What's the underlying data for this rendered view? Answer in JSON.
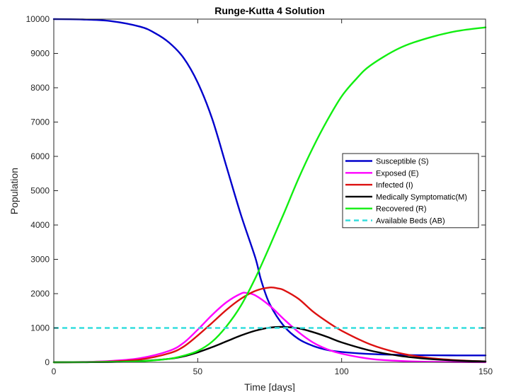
{
  "chart_data": {
    "type": "line",
    "title": "Runge-Kutta 4 Solution",
    "xlabel": "Time [days]",
    "ylabel": "Population",
    "xlim": [
      0,
      150
    ],
    "ylim": [
      0,
      10000
    ],
    "xticks": [
      0,
      50,
      100,
      150
    ],
    "yticks": [
      0,
      1000,
      2000,
      3000,
      4000,
      5000,
      6000,
      7000,
      8000,
      9000,
      10000
    ],
    "grid": false,
    "legend_position": "right-middle",
    "series": [
      {
        "name": "Susceptible (S)",
        "color": "#0000cc",
        "style": "solid",
        "x": [
          0,
          10,
          20,
          30,
          35,
          40,
          45,
          50,
          55,
          60,
          65,
          70,
          72,
          75,
          80,
          85,
          90,
          95,
          100,
          110,
          120,
          130,
          140,
          150
        ],
        "y": [
          10000,
          9990,
          9940,
          9780,
          9600,
          9320,
          8880,
          8150,
          7100,
          5700,
          4300,
          3050,
          2400,
          1700,
          1050,
          680,
          480,
          360,
          300,
          240,
          215,
          205,
          200,
          200
        ]
      },
      {
        "name": "Exposed (E)",
        "color": "#ff00ff",
        "style": "solid",
        "x": [
          0,
          10,
          20,
          30,
          40,
          45,
          50,
          55,
          60,
          65,
          67,
          70,
          75,
          80,
          85,
          90,
          95,
          100,
          110,
          120,
          130,
          150
        ],
        "y": [
          0,
          10,
          40,
          120,
          330,
          560,
          950,
          1380,
          1750,
          2000,
          2020,
          1950,
          1650,
          1250,
          880,
          580,
          380,
          250,
          100,
          40,
          15,
          2
        ]
      },
      {
        "name": "Infected (I)",
        "color": "#dd1111",
        "style": "solid",
        "x": [
          0,
          10,
          20,
          30,
          40,
          45,
          50,
          55,
          60,
          65,
          70,
          75,
          78,
          80,
          85,
          90,
          95,
          100,
          110,
          120,
          130,
          140,
          150
        ],
        "y": [
          0,
          5,
          25,
          80,
          260,
          450,
          780,
          1150,
          1530,
          1850,
          2080,
          2180,
          2150,
          2100,
          1850,
          1480,
          1180,
          920,
          520,
          270,
          130,
          60,
          25
        ]
      },
      {
        "name": "Medically Symptomatic(M)",
        "color": "#000000",
        "style": "solid",
        "x": [
          0,
          10,
          20,
          30,
          40,
          45,
          50,
          55,
          60,
          65,
          70,
          75,
          80,
          85,
          90,
          95,
          100,
          110,
          120,
          130,
          140,
          150
        ],
        "y": [
          0,
          2,
          10,
          35,
          100,
          170,
          290,
          440,
          610,
          780,
          920,
          1010,
          1030,
          990,
          880,
          740,
          580,
          340,
          190,
          100,
          50,
          25
        ]
      },
      {
        "name": "Recovered (R)",
        "color": "#11ee11",
        "style": "solid",
        "x": [
          0,
          20,
          30,
          40,
          45,
          50,
          55,
          60,
          65,
          70,
          75,
          80,
          85,
          90,
          95,
          100,
          105,
          110,
          120,
          130,
          140,
          150
        ],
        "y": [
          0,
          10,
          30,
          100,
          190,
          330,
          600,
          1050,
          1650,
          2450,
          3380,
          4350,
          5350,
          6250,
          7050,
          7750,
          8250,
          8650,
          9150,
          9450,
          9650,
          9760
        ]
      },
      {
        "name": "Available Beds (AB)",
        "color": "#33dddd",
        "style": "dashed",
        "x": [
          0,
          150
        ],
        "y": [
          1000,
          1000
        ]
      }
    ]
  }
}
